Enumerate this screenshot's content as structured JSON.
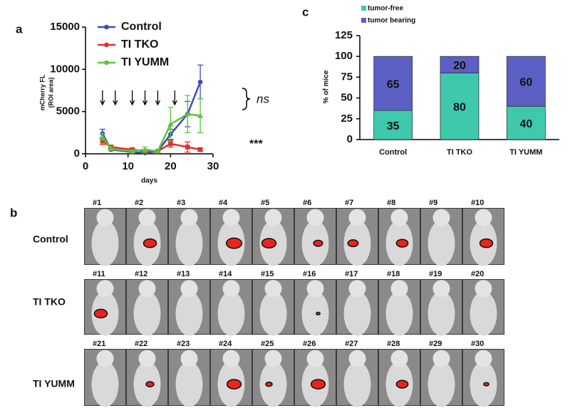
{
  "chart_data": [
    {
      "type": "line",
      "panel": "a",
      "ylabel": [
        "mCherry FL",
        "(ROI area)"
      ],
      "xlabel": "days",
      "x": [
        4,
        6,
        11,
        14,
        17,
        20,
        24,
        27
      ],
      "series": [
        {
          "name": "Control",
          "color": "#3f4bb8",
          "values": [
            2400,
            500,
            200,
            100,
            300,
            2300,
            4700,
            8500
          ],
          "errors": [
            500,
            150,
            100,
            80,
            100,
            600,
            1500,
            2000
          ]
        },
        {
          "name": "TI TKO",
          "color": "#e0302c",
          "values": [
            1500,
            800,
            500,
            300,
            300,
            1200,
            800,
            500
          ],
          "errors": [
            400,
            200,
            150,
            100,
            100,
            400,
            600,
            200
          ]
        },
        {
          "name": "TI YUMM",
          "color": "#5cc43c",
          "values": [
            2000,
            600,
            300,
            500,
            300,
            3500,
            4700,
            4500
          ],
          "errors": [
            400,
            200,
            150,
            300,
            100,
            2000,
            2200,
            2000
          ]
        }
      ],
      "arrows": [
        4,
        7,
        11,
        14,
        17,
        21
      ],
      "annotations": [
        "ns",
        "***"
      ],
      "xlim": [
        0,
        30
      ],
      "xticks": [
        0,
        10,
        20,
        30
      ],
      "ylim": [
        0,
        15000
      ],
      "yticks": [
        0,
        5000,
        10000,
        15000
      ]
    },
    {
      "type": "stacked-bar",
      "panel": "c",
      "ylabel": "% of mice",
      "categories": [
        "Control",
        "TI TKO",
        "TI YUMM"
      ],
      "series": [
        {
          "name": "tumor-free",
          "color": "#3ec9ad",
          "values": [
            35,
            80,
            40
          ]
        },
        {
          "name": "tumor bearing",
          "color": "#5c5fc4",
          "values": [
            65,
            20,
            60
          ]
        }
      ],
      "ylim": [
        0,
        125
      ],
      "yticks": [
        0,
        25,
        50,
        75,
        100,
        125
      ]
    }
  ],
  "imaging": {
    "panel": "b",
    "rows": [
      {
        "name": "Control",
        "mice": [
          "#1",
          "#2",
          "#3",
          "#4",
          "#5",
          "#6",
          "#7",
          "#8",
          "#9",
          "#10"
        ]
      },
      {
        "name": "TI TKO",
        "mice": [
          "#11",
          "#12",
          "#13",
          "#14",
          "#15",
          "#16",
          "#17",
          "#18",
          "#19",
          "#20"
        ]
      },
      {
        "name": "TI YUMM",
        "mice": [
          "#21",
          "#22",
          "#23",
          "#24",
          "#25",
          "#26",
          "#27",
          "#28",
          "#29",
          "#30"
        ]
      }
    ]
  }
}
